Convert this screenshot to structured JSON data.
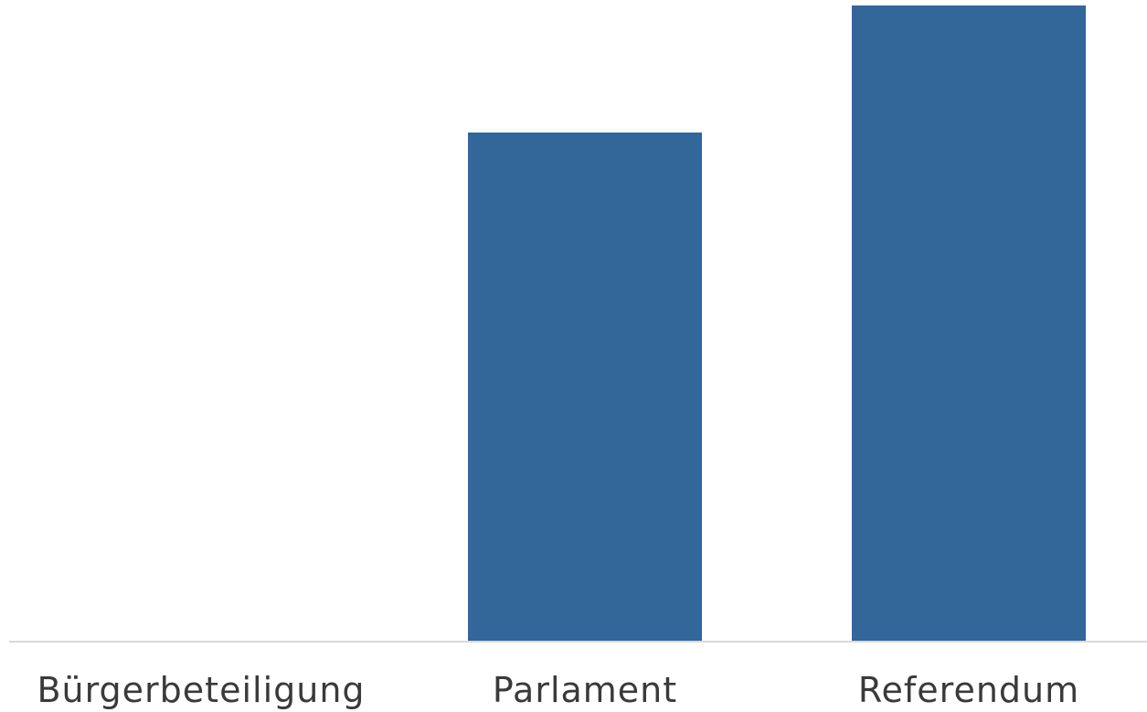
{
  "chart_data": {
    "type": "bar",
    "categories": [
      "Bürgerbeteiligung",
      "Parlament",
      "Referendum"
    ],
    "values": [
      0,
      80,
      100
    ],
    "ylim": [
      0,
      100
    ],
    "grid": false,
    "legend": "none",
    "bar_color": "#336699",
    "baseline_color": "#d9d9d9",
    "label_color": "#3a3a3a"
  }
}
